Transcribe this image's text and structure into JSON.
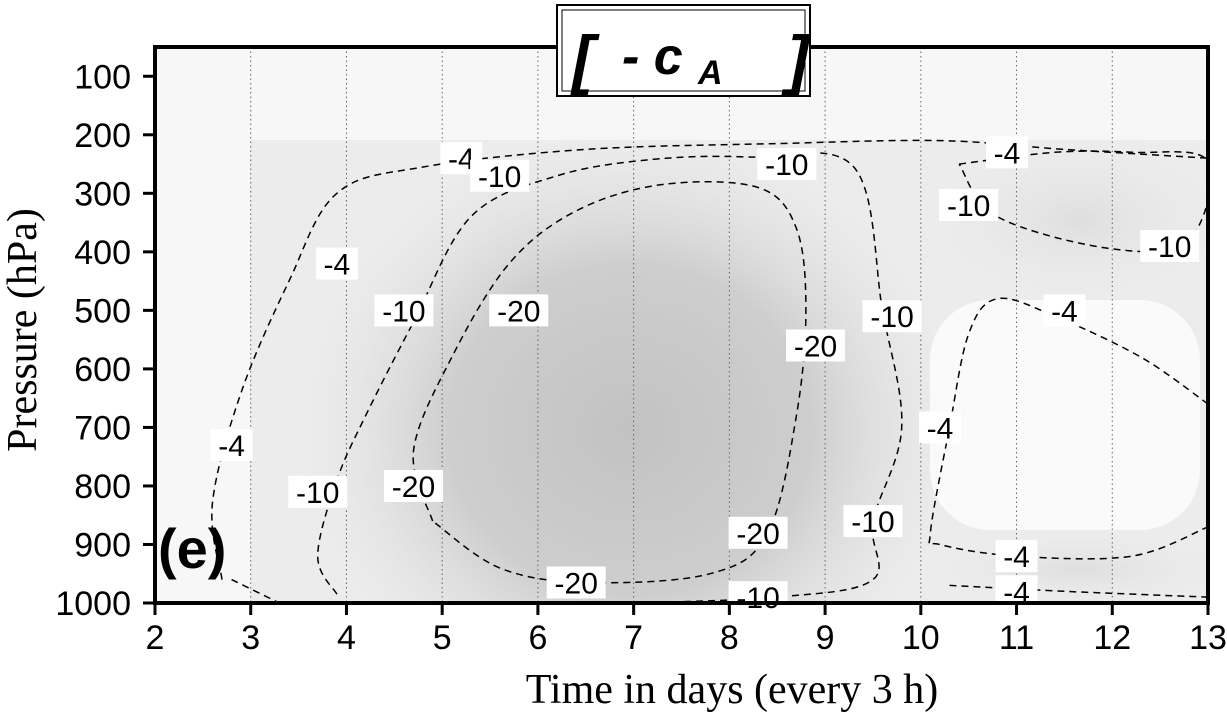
{
  "chart_data": {
    "type": "heatmap",
    "title": {
      "bracket_left": "[",
      "prefix": "- c",
      "subscript": "A",
      "bracket_right": "]"
    },
    "panel_label": "(e)",
    "xlabel": "Time in days (every 3 h)",
    "ylabel": "Pressure (hPa)",
    "xlim": [
      2,
      13
    ],
    "ylim": [
      1000,
      50
    ],
    "x_ticks": [
      2,
      3,
      4,
      5,
      6,
      7,
      8,
      9,
      10,
      11,
      12,
      13
    ],
    "y_ticks": [
      100,
      200,
      300,
      400,
      500,
      600,
      700,
      800,
      900,
      1000
    ],
    "grid": "vertical dotted lines at each day",
    "contour_levels": [
      -4,
      -10,
      -20
    ],
    "shading": "grayscale, darker = more negative",
    "contours": [
      {
        "level": -4,
        "points": [
          [
            2.7,
            960
          ],
          [
            2.6,
            830
          ],
          [
            2.9,
            640
          ],
          [
            3.4,
            450
          ],
          [
            3.9,
            300
          ],
          [
            4.8,
            255
          ],
          [
            6.5,
            225
          ],
          [
            8.5,
            215
          ],
          [
            10.2,
            210
          ],
          [
            11.5,
            225
          ],
          [
            13.0,
            240
          ]
        ]
      },
      {
        "level": -4,
        "points": [
          [
            2.8,
            960
          ],
          [
            3.3,
            1000
          ]
        ]
      },
      {
        "level": -4,
        "points": [
          [
            13.0,
            660
          ],
          [
            12.3,
            580
          ],
          [
            11.4,
            510
          ],
          [
            10.8,
            480
          ],
          [
            10.5,
            540
          ],
          [
            10.3,
            700
          ],
          [
            10.1,
            880
          ],
          [
            10.2,
            900
          ],
          [
            11.0,
            920
          ],
          [
            12.2,
            920
          ],
          [
            13.0,
            870
          ]
        ]
      },
      {
        "level": -4,
        "points": [
          [
            10.3,
            970
          ],
          [
            11.5,
            980
          ],
          [
            13.0,
            990
          ]
        ]
      },
      {
        "level": -10,
        "points": [
          [
            3.9,
            985
          ],
          [
            3.7,
            920
          ],
          [
            3.9,
            790
          ],
          [
            4.2,
            680
          ],
          [
            4.7,
            520
          ],
          [
            5.3,
            340
          ],
          [
            6.2,
            270
          ],
          [
            7.2,
            242
          ],
          [
            8.2,
            238
          ],
          [
            9.3,
            255
          ],
          [
            9.6,
            500
          ],
          [
            9.8,
            700
          ],
          [
            9.5,
            860
          ],
          [
            9.5,
            960
          ],
          [
            8.5,
            990
          ],
          [
            7.0,
            1000
          ]
        ]
      },
      {
        "level": -10,
        "points": [
          [
            10.4,
            250
          ],
          [
            11.4,
            230
          ],
          [
            12.2,
            230
          ],
          [
            13.0,
            245
          ],
          [
            12.8,
            380
          ],
          [
            12.0,
            395
          ],
          [
            10.8,
            340
          ],
          [
            10.4,
            250
          ]
        ]
      },
      {
        "level": -20,
        "points": [
          [
            4.9,
            860
          ],
          [
            4.7,
            740
          ],
          [
            5.1,
            580
          ],
          [
            5.7,
            420
          ],
          [
            6.4,
            330
          ],
          [
            7.3,
            285
          ],
          [
            8.3,
            290
          ],
          [
            8.7,
            360
          ],
          [
            8.8,
            500
          ],
          [
            8.7,
            680
          ],
          [
            8.4,
            880
          ],
          [
            7.8,
            950
          ],
          [
            6.5,
            965
          ],
          [
            5.6,
            940
          ],
          [
            4.9,
            860
          ]
        ]
      }
    ],
    "contour_labels": [
      {
        "text": "-4",
        "x": 3.9,
        "y": 420
      },
      {
        "text": "-4",
        "x": 2.8,
        "y": 730
      },
      {
        "text": "-4",
        "x": 5.2,
        "y": 240
      },
      {
        "text": "-4",
        "x": 10.9,
        "y": 230
      },
      {
        "text": "-4",
        "x": 11.5,
        "y": 500
      },
      {
        "text": "-4",
        "x": 10.2,
        "y": 700
      },
      {
        "text": "-4",
        "x": 11.0,
        "y": 920
      },
      {
        "text": "-4",
        "x": 11.0,
        "y": 980
      },
      {
        "text": "-10",
        "x": 4.6,
        "y": 500
      },
      {
        "text": "-10",
        "x": 3.7,
        "y": 810
      },
      {
        "text": "-10",
        "x": 5.6,
        "y": 270
      },
      {
        "text": "-10",
        "x": 8.6,
        "y": 250
      },
      {
        "text": "-10",
        "x": 10.5,
        "y": 320
      },
      {
        "text": "-10",
        "x": 12.6,
        "y": 390
      },
      {
        "text": "-10",
        "x": 9.7,
        "y": 510
      },
      {
        "text": "-10",
        "x": 9.5,
        "y": 860
      },
      {
        "text": "-10",
        "x": 8.3,
        "y": 990
      },
      {
        "text": "-20",
        "x": 5.8,
        "y": 500
      },
      {
        "text": "-20",
        "x": 4.7,
        "y": 800
      },
      {
        "text": "-20",
        "x": 8.9,
        "y": 560
      },
      {
        "text": "-20",
        "x": 8.3,
        "y": 880
      },
      {
        "text": "-20",
        "x": 6.4,
        "y": 965
      }
    ]
  }
}
